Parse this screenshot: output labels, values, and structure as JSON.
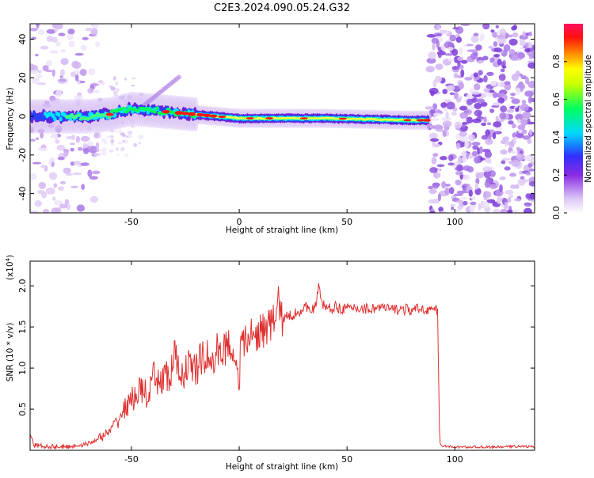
{
  "title": "C2E3.2024.090.05.24.G32",
  "chart_data": [
    {
      "type": "heatmap",
      "xlabel": "Height of straight line (km)",
      "ylabel": "Frequency (Hz)",
      "xlim": [
        -97,
        137
      ],
      "ylim": [
        -50,
        48
      ],
      "xticks": [
        -50,
        0,
        50,
        100
      ],
      "xtick_labels": [
        "-50",
        "0",
        "50",
        "100"
      ],
      "yticks": [
        -40,
        -20,
        0,
        20,
        40
      ],
      "ytick_labels": [
        "-40",
        "-20",
        "0",
        "20",
        "40"
      ],
      "grid": false,
      "colorbar": {
        "label": "Normalized spectral amplitude",
        "range": [
          0,
          1
        ],
        "ticks": [
          0.0,
          0.2,
          0.4,
          0.6,
          0.8
        ],
        "tick_labels": [
          "0.0",
          "0.2",
          "0.4",
          "0.6",
          "0.8"
        ],
        "colors": [
          "#ffffff",
          "#c8a8f0",
          "#8a2be2",
          "#2040ff",
          "#00e5ff",
          "#00ff40",
          "#ffff00",
          "#ff8000",
          "#ff0000",
          "#ff1060"
        ]
      },
      "ridge": {
        "x": [
          -97,
          -80,
          -70,
          -60,
          -50,
          -40,
          -30,
          -20,
          -10,
          0,
          20,
          40,
          60,
          80,
          88
        ],
        "y": [
          0,
          0,
          0,
          1,
          4,
          3,
          2,
          1,
          0,
          -1,
          -1,
          -1,
          -1.5,
          -2,
          -2
        ]
      },
      "noise_regions": [
        {
          "x": [
            -97,
            -65
          ],
          "note": ""
        },
        {
          "x": [
            88,
            137
          ],
          "note": ""
        }
      ]
    },
    {
      "type": "line",
      "xlabel": "Height of straight line (km)",
      "ylabel": "SNR (10 * v/v)",
      "y_multiplier_label": "(x10",
      "y_multiplier_exp": "4",
      "y_multiplier_close": ")",
      "xlim": [
        -97,
        137
      ],
      "ylim": [
        0,
        2.3
      ],
      "xticks": [
        -50,
        0,
        50,
        100
      ],
      "xtick_labels": [
        "-50",
        "0",
        "50",
        "100"
      ],
      "yticks": [
        0.5,
        1.0,
        1.5,
        2.0
      ],
      "ytick_labels": [
        "0.5",
        "1.0",
        "1.5",
        "2.0"
      ],
      "color": "#e03030",
      "grid": false,
      "series": [
        {
          "x": [
            -97,
            -95,
            -90,
            -80,
            -75,
            -70,
            -67,
            -65,
            -60,
            -58,
            -55,
            -52,
            -50,
            -48,
            -45,
            -42,
            -40,
            -38,
            -35,
            -32,
            -30,
            -28,
            -25,
            -22,
            -20,
            -18,
            -15,
            -12,
            -10,
            -8,
            -5,
            -3,
            0,
            1,
            3,
            5,
            8,
            10,
            12,
            15,
            17,
            18,
            20,
            22,
            25,
            28,
            30,
            33,
            35,
            37,
            38,
            40,
            42,
            45,
            50,
            55,
            60,
            65,
            70,
            75,
            80,
            85,
            90,
            91,
            92,
            93,
            95,
            100,
            110,
            120,
            130,
            137
          ],
          "y": [
            0.18,
            0.06,
            0.05,
            0.04,
            0.06,
            0.08,
            0.12,
            0.15,
            0.22,
            0.3,
            0.42,
            0.55,
            0.6,
            0.68,
            0.75,
            0.62,
            0.88,
            0.8,
            0.92,
            0.85,
            1.2,
            0.9,
            0.98,
            1.05,
            0.96,
            1.1,
            1.15,
            1.02,
            1.25,
            1.18,
            1.3,
            1.22,
            0.9,
            1.32,
            1.3,
            1.4,
            1.38,
            1.48,
            1.45,
            1.55,
            1.6,
            1.85,
            1.58,
            1.62,
            1.65,
            1.7,
            1.72,
            1.75,
            1.7,
            2.0,
            1.8,
            1.75,
            1.72,
            1.74,
            1.72,
            1.73,
            1.72,
            1.74,
            1.71,
            1.72,
            1.7,
            1.72,
            1.71,
            1.7,
            1.68,
            0.08,
            0.05,
            0.04,
            0.04,
            0.04,
            0.05,
            0.04
          ]
        }
      ]
    }
  ]
}
